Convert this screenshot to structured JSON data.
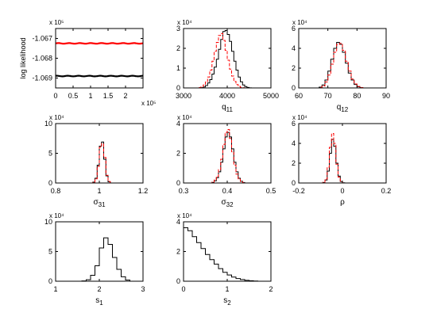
{
  "colors": {
    "black_series": "#000000",
    "red_series": "#ff0000"
  },
  "chart_data": [
    {
      "id": "loglik",
      "type": "line",
      "title": "",
      "xlabel": "",
      "ylabel": "log likelihood",
      "xlim": [
        0,
        2.5
      ],
      "ylim": [
        -1.0695,
        -1.0665
      ],
      "xticks": [
        0,
        0.5,
        1,
        1.5,
        2
      ],
      "xtick_labels": [
        "0",
        "0.5",
        "1",
        "1.5",
        "2"
      ],
      "yticks": [
        -1.067,
        -1.068,
        -1.069
      ],
      "ytick_labels": [
        "-1.067",
        "-1.068",
        "-1.069"
      ],
      "x_exponent": "x 10⁵",
      "y_exponent": "x 10⁵",
      "series": [
        {
          "color": "red",
          "value": -1.06725
        },
        {
          "color": "black",
          "value": -1.0689
        }
      ]
    },
    {
      "id": "q11",
      "type": "histogram",
      "xlabel": "q",
      "xlabel_sub": "11",
      "xlim": [
        3000,
        5000
      ],
      "ylim": [
        0,
        30000
      ],
      "xticks": [
        3000,
        4000,
        5000
      ],
      "xtick_labels": [
        "3000",
        "4000",
        "5000"
      ],
      "yticks": [
        0,
        10000,
        20000,
        30000
      ],
      "ytick_labels": [
        "0",
        "1",
        "2",
        "3"
      ],
      "y_exponent": "x 10⁴",
      "bin_start": 3350,
      "bin_width": 50,
      "series": [
        {
          "color": "black",
          "style": "solid",
          "values": [
            0,
            150,
            500,
            1200,
            2500,
            4200,
            7000,
            10500,
            14500,
            19500,
            24500,
            28500,
            29000,
            27000,
            23500,
            18500,
            13500,
            9000,
            5500,
            3100,
            1500,
            700,
            250,
            50,
            0
          ]
        },
        {
          "color": "red",
          "style": "dashed",
          "values": [
            200,
            600,
            1500,
            3000,
            5500,
            9000,
            13500,
            18500,
            23000,
            26500,
            27500,
            24000,
            19000,
            14000,
            9500,
            6000,
            3300,
            1700,
            800,
            300,
            100,
            0,
            0,
            0,
            0
          ]
        }
      ]
    },
    {
      "id": "q12",
      "type": "histogram",
      "xlabel": "q",
      "xlabel_sub": "12",
      "xlim": [
        60,
        90
      ],
      "ylim": [
        0,
        60000
      ],
      "xticks": [
        60,
        70,
        80,
        90
      ],
      "xtick_labels": [
        "60",
        "70",
        "80",
        "90"
      ],
      "yticks": [
        0,
        20000,
        40000,
        60000
      ],
      "ytick_labels": [
        "0",
        "2",
        "4",
        "6"
      ],
      "y_exponent": "x 10⁴",
      "bin_start": 66,
      "bin_width": 1,
      "series": [
        {
          "color": "black",
          "style": "solid",
          "values": [
            0,
            800,
            3000,
            8000,
            17000,
            29000,
            40000,
            46000,
            44000,
            36000,
            25000,
            15000,
            8000,
            3500,
            1200,
            300,
            0
          ]
        },
        {
          "color": "red",
          "style": "dashed",
          "values": [
            0,
            500,
            2000,
            6000,
            13000,
            24000,
            36000,
            44000,
            45000,
            38000,
            27000,
            17000,
            9000,
            4000,
            1500,
            400,
            0
          ]
        }
      ]
    },
    {
      "id": "sigma31",
      "type": "histogram",
      "xlabel": "σ",
      "xlabel_sub": "31",
      "xlim": [
        0.8,
        1.2
      ],
      "ylim": [
        0,
        100000
      ],
      "xticks": [
        0.8,
        1.0,
        1.2
      ],
      "xtick_labels": [
        "0.8",
        "1",
        "1.2"
      ],
      "yticks": [
        0,
        50000,
        100000
      ],
      "ytick_labels": [
        "0",
        "5",
        "10"
      ],
      "y_exponent": "x 10⁴",
      "bin_start": 0.96,
      "bin_width": 0.01,
      "series": [
        {
          "color": "black",
          "style": "solid",
          "values": [
            0,
            1500,
            8000,
            30000,
            62000,
            69000,
            40000,
            12000,
            2000,
            0
          ]
        },
        {
          "color": "red",
          "style": "dashed",
          "values": [
            0,
            1000,
            7000,
            28000,
            60000,
            66000,
            43000,
            13000,
            2500,
            0
          ]
        }
      ]
    },
    {
      "id": "sigma32",
      "type": "histogram",
      "xlabel": "σ",
      "xlabel_sub": "32",
      "xlim": [
        0.3,
        0.5
      ],
      "ylim": [
        0,
        40000
      ],
      "xticks": [
        0.3,
        0.4,
        0.5
      ],
      "xtick_labels": [
        "0.3",
        "0.4",
        "0.5"
      ],
      "yticks": [
        0,
        20000,
        40000
      ],
      "ytick_labels": [
        "0",
        "2",
        "4"
      ],
      "y_exponent": "x 10⁴",
      "bin_start": 0.36,
      "bin_width": 0.005,
      "series": [
        {
          "color": "black",
          "style": "solid",
          "values": [
            0,
            400,
            1500,
            3500,
            7500,
            14000,
            23000,
            31000,
            34000,
            31000,
            23000,
            14000,
            7500,
            3200,
            1200,
            300,
            0
          ]
        },
        {
          "color": "red",
          "style": "dashed",
          "values": [
            0,
            600,
            2000,
            4500,
            9000,
            16000,
            26000,
            34000,
            36000,
            30000,
            21000,
            12000,
            6000,
            2500,
            900,
            200,
            0
          ]
        }
      ]
    },
    {
      "id": "rho",
      "type": "histogram",
      "xlabel": "ρ",
      "xlabel_sub": "",
      "xlim": [
        -0.2,
        0.2
      ],
      "ylim": [
        0,
        60000
      ],
      "xticks": [
        -0.2,
        0,
        0.2
      ],
      "xtick_labels": [
        "-0.2",
        "0",
        "0.2"
      ],
      "yticks": [
        0,
        20000,
        40000,
        60000
      ],
      "ytick_labels": [
        "0",
        "2",
        "4",
        "6"
      ],
      "y_exponent": "x 10⁴",
      "bin_start": -0.1,
      "bin_width": 0.01,
      "series": [
        {
          "color": "black",
          "style": "solid",
          "values": [
            0,
            500,
            3000,
            12000,
            30000,
            44000,
            37000,
            20000,
            7000,
            1500,
            200,
            0
          ]
        },
        {
          "color": "red",
          "style": "dashed",
          "values": [
            0,
            800,
            4000,
            16000,
            36000,
            50000,
            40000,
            19000,
            6000,
            1200,
            100,
            0
          ]
        }
      ]
    },
    {
      "id": "s1",
      "type": "histogram",
      "xlabel": "s",
      "xlabel_sub": "1",
      "xlim": [
        1,
        3
      ],
      "ylim": [
        0,
        100000
      ],
      "xticks": [
        1,
        2,
        3
      ],
      "xtick_labels": [
        "1",
        "2",
        "3"
      ],
      "yticks": [
        0,
        50000,
        100000
      ],
      "ytick_labels": [
        "0",
        "5",
        "10"
      ],
      "y_exponent": "x 10⁴",
      "bin_start": 1.5,
      "bin_width": 0.1,
      "series": [
        {
          "color": "black",
          "style": "solid",
          "values": [
            0,
            500,
            2500,
            10000,
            26000,
            56000,
            73000,
            62000,
            40000,
            20000,
            7500,
            2000,
            0
          ]
        },
        {
          "color": "red",
          "style": "dashed",
          "values": []
        }
      ]
    },
    {
      "id": "s2",
      "type": "histogram",
      "xlabel": "s",
      "xlabel_sub": "2",
      "xlim": [
        0,
        2
      ],
      "ylim": [
        0,
        40000
      ],
      "xticks": [
        0,
        1,
        2
      ],
      "xtick_labels": [
        "0",
        "1",
        "2"
      ],
      "yticks": [
        0,
        20000,
        40000
      ],
      "ytick_labels": [
        "0",
        "2",
        "4"
      ],
      "y_exponent": "x 10⁴",
      "bin_start": 0,
      "bin_width": 0.1,
      "series": [
        {
          "color": "black",
          "style": "solid",
          "values": [
            36000,
            34000,
            30000,
            26000,
            22000,
            18000,
            14500,
            11500,
            8500,
            6000,
            4200,
            2800,
            1800,
            1100,
            600,
            300,
            100,
            0
          ]
        },
        {
          "color": "red",
          "style": "dashed",
          "values": []
        }
      ]
    }
  ]
}
